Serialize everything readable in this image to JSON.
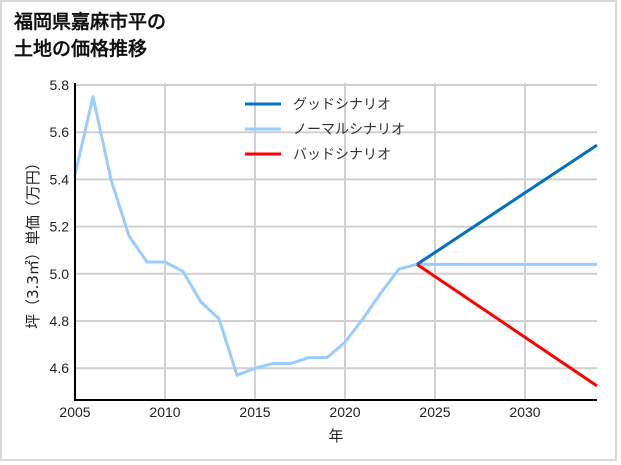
{
  "title": {
    "line1": "福岡県嘉麻市平の",
    "line2": "土地の価格推移"
  },
  "chart_data": {
    "type": "line",
    "title": "福岡県嘉麻市平の土地の価格推移",
    "xlabel": "年",
    "ylabel": "坪（3.3㎡）単価（万円）",
    "xlim": [
      2005,
      2034
    ],
    "ylim": [
      4.48,
      5.81
    ],
    "x_ticks": [
      2005,
      2010,
      2015,
      2020,
      2025,
      2030
    ],
    "y_ticks": [
      4.6,
      4.8,
      5.0,
      5.2,
      5.4,
      5.6,
      5.8
    ],
    "y_tick_labels": [
      "4.6",
      "4.8",
      "5.0",
      "5.2",
      "5.4",
      "5.6",
      "5.8"
    ],
    "grid": true,
    "legend_position": "upper center",
    "series": [
      {
        "name": "グッドシナリオ",
        "color": "#0070c0",
        "x": [
          2024,
          2034
        ],
        "y": [
          5.04,
          5.545
        ]
      },
      {
        "name": "ノーマルシナリオ",
        "color": "#99ccff",
        "x": [
          2005,
          2006,
          2007,
          2008,
          2009,
          2010,
          2011,
          2012,
          2013,
          2014,
          2015,
          2016,
          2017,
          2018,
          2019,
          2020,
          2021,
          2022,
          2023,
          2024,
          2034
        ],
        "y": [
          5.42,
          5.75,
          5.4,
          5.16,
          5.05,
          5.05,
          5.01,
          4.88,
          4.81,
          4.57,
          4.6,
          4.62,
          4.62,
          4.645,
          4.645,
          4.71,
          4.81,
          4.92,
          5.02,
          5.04,
          5.04
        ]
      },
      {
        "name": "バッドシナリオ",
        "color": "#ff0000",
        "x": [
          2024,
          2034
        ],
        "y": [
          5.04,
          4.525
        ]
      }
    ]
  }
}
